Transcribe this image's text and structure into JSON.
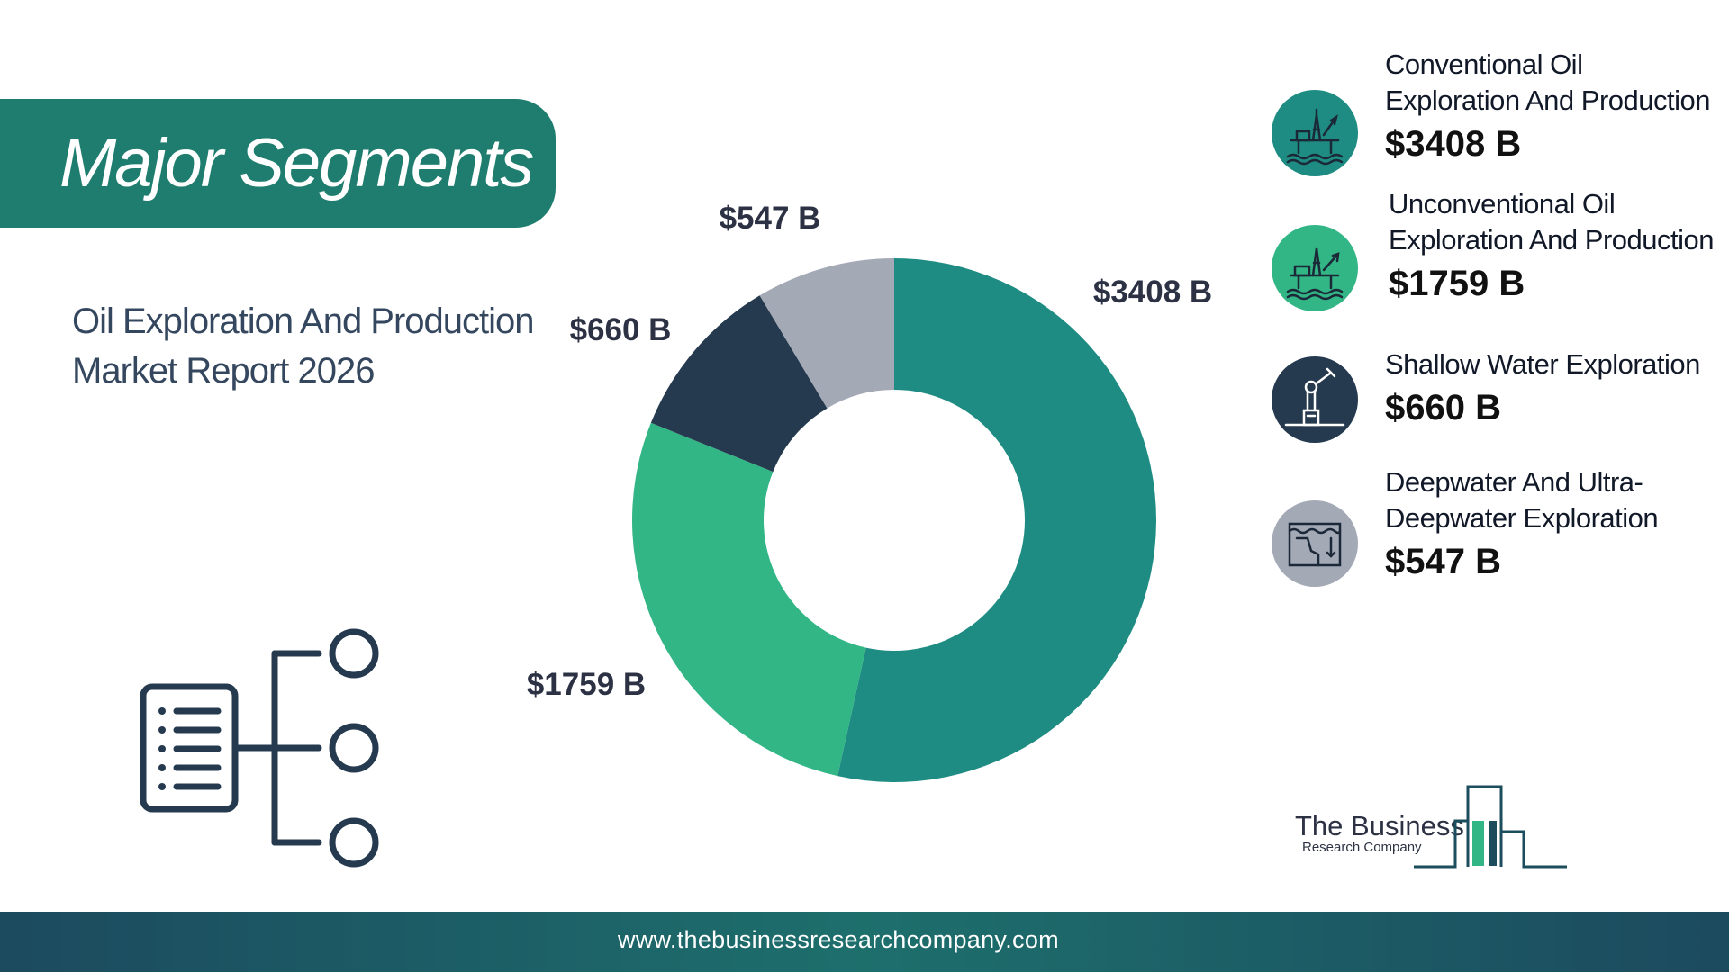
{
  "banner": {
    "title": "Major Segments"
  },
  "report": {
    "title_line1": "Oil Exploration And Production",
    "title_line2": "Market Report 2026"
  },
  "chart_data": {
    "type": "pie",
    "categories": [
      "Conventional Oil Exploration And Production",
      "Unconventional Oil Exploration And Production",
      "Shallow Water Exploration",
      "Deepwater And Ultra-Deepwater Exploration"
    ],
    "values": [
      3408,
      1759,
      660,
      547
    ],
    "value_labels": [
      "$3408 B",
      "$1759 B",
      "$660 B",
      "$547 B"
    ],
    "colors": [
      "#1e8c82",
      "#33b685",
      "#253a4f",
      "#a4a9b6"
    ],
    "donut": true
  },
  "legend": [
    {
      "line1": "Conventional Oil",
      "line2": "Exploration And Production",
      "value": "$3408 B",
      "icon": "offshore-rig-icon",
      "color": "#1e8c82"
    },
    {
      "line1": "Unconventional Oil",
      "line2": "Exploration And Production",
      "value": "$1759 B",
      "icon": "oil-platform-icon",
      "color": "#33b685"
    },
    {
      "line1": "Shallow Water Exploration",
      "line2": "",
      "value": "$660 B",
      "icon": "pumpjack-icon",
      "color": "#253a4f"
    },
    {
      "line1": "Deepwater And Ultra-",
      "line2": "Deepwater Exploration",
      "value": "$547 B",
      "icon": "deepwater-map-icon",
      "color": "#a4a9b6"
    }
  ],
  "logo": {
    "line1": "The Business",
    "line2": "Research Company"
  },
  "footer": {
    "url": "www.thebusinessresearchcompany.com"
  }
}
